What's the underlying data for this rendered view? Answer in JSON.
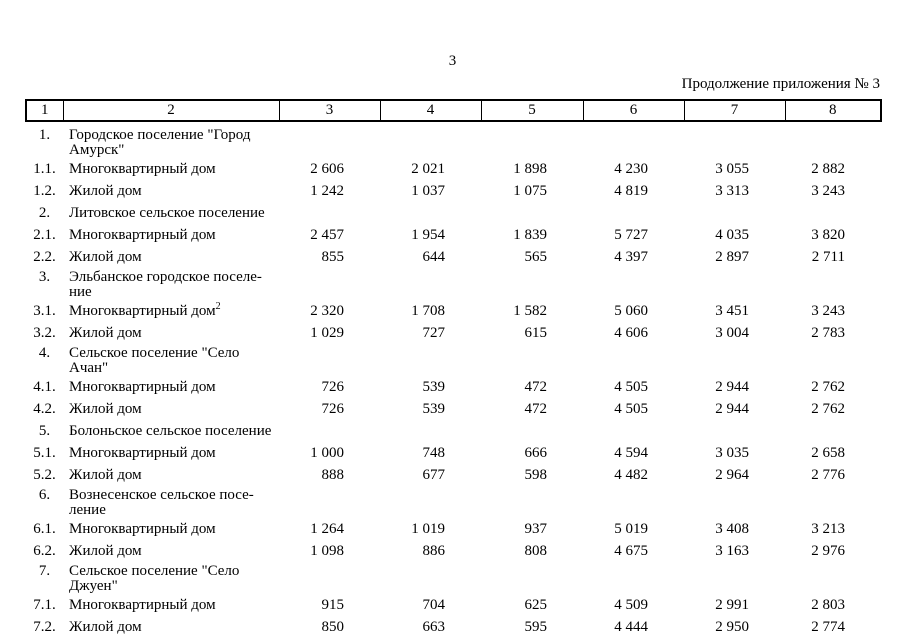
{
  "page_number": "3",
  "continuation_note": "Продолжение приложения № 3",
  "table": {
    "columns": [
      "1",
      "2",
      "3",
      "4",
      "5",
      "6",
      "7",
      "8"
    ],
    "rows": [
      {
        "num": "1.",
        "name": "Городское поселение \"Город\nАмурск\"",
        "values": []
      },
      {
        "num": "1.1.",
        "name": "Многоквартирный дом",
        "values": [
          "2 606",
          "2 021",
          "1 898",
          "4 230",
          "3 055",
          "2 882"
        ]
      },
      {
        "num": "1.2.",
        "name": "Жилой дом",
        "values": [
          "1 242",
          "1 037",
          "1 075",
          "4 819",
          "3 313",
          "3 243"
        ]
      },
      {
        "num": "2.",
        "name": "Литовское сельское поселение",
        "values": []
      },
      {
        "num": "2.1.",
        "name": "Многоквартирный дом",
        "values": [
          "2 457",
          "1 954",
          "1 839",
          "5 727",
          "4 035",
          "3 820"
        ]
      },
      {
        "num": "2.2.",
        "name": "Жилой дом",
        "values": [
          "855",
          "644",
          "565",
          "4 397",
          "2 897",
          "2 711"
        ]
      },
      {
        "num": "3.",
        "name": "Эльбанское городское поселе-\nние",
        "values": []
      },
      {
        "num": "3.1.",
        "name": "Многоквартирный дом",
        "sup": "2",
        "values": [
          "2 320",
          "1 708",
          "1 582",
          "5 060",
          "3 451",
          "3 243"
        ]
      },
      {
        "num": "3.2.",
        "name": "Жилой дом",
        "values": [
          "1 029",
          "727",
          "615",
          "4 606",
          "3 004",
          "2 783"
        ]
      },
      {
        "num": "4.",
        "name": "Сельское поселение \"Село\nАчан\"",
        "values": []
      },
      {
        "num": "4.1.",
        "name": "Многоквартирный дом",
        "values": [
          "726",
          "539",
          "472",
          "4 505",
          "2 944",
          "2 762"
        ]
      },
      {
        "num": "4.2.",
        "name": "Жилой дом",
        "values": [
          "726",
          "539",
          "472",
          "4 505",
          "2 944",
          "2 762"
        ]
      },
      {
        "num": "5.",
        "name": "Болоньское сельское поселение",
        "values": []
      },
      {
        "num": "5.1.",
        "name": "Многоквартирный дом",
        "values": [
          "1 000",
          "748",
          "666",
          "4 594",
          "3 035",
          "2 658"
        ]
      },
      {
        "num": "5.2.",
        "name": "Жилой дом",
        "values": [
          "888",
          "677",
          "598",
          "4 482",
          "2 964",
          "2 776"
        ]
      },
      {
        "num": "6.",
        "name": "Вознесенское сельское посе-\nление",
        "values": []
      },
      {
        "num": "6.1.",
        "name": "Многоквартирный дом",
        "values": [
          "1 264",
          "1 019",
          "937",
          "5 019",
          "3 408",
          "3 213"
        ]
      },
      {
        "num": "6.2.",
        "name": "Жилой дом",
        "values": [
          "1 098",
          "886",
          "808",
          "4 675",
          "3 163",
          "2 976"
        ]
      },
      {
        "num": "7.",
        "name": "Сельское поселение \"Село\nДжуен\"",
        "values": []
      },
      {
        "num": "7.1.",
        "name": "Многоквартирный дом",
        "values": [
          "915",
          "704",
          "625",
          "4 509",
          "2 991",
          "2 803"
        ]
      },
      {
        "num": "7.2.",
        "name": "Жилой дом",
        "values": [
          "850",
          "663",
          "595",
          "4 444",
          "2 950",
          "2 774"
        ]
      }
    ]
  }
}
